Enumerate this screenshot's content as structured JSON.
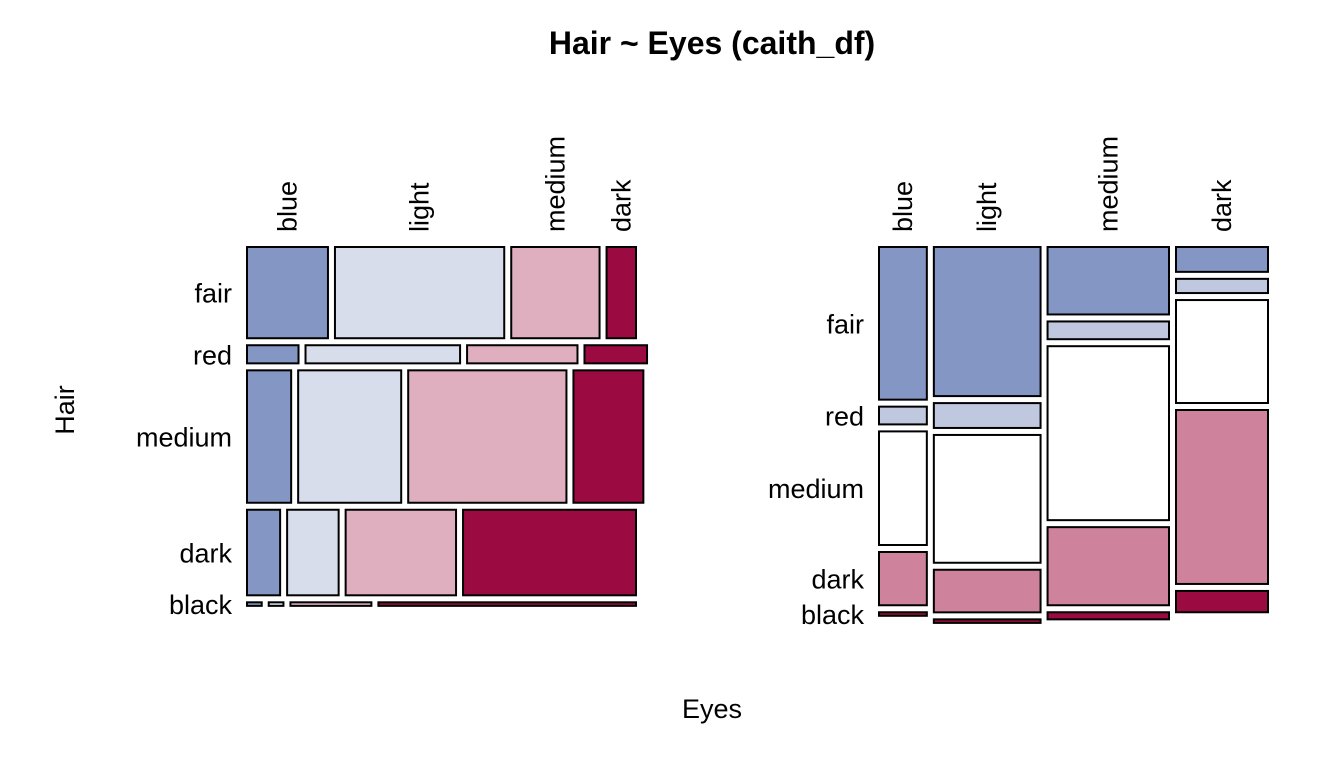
{
  "title": "Hair ~ Eyes (caith_df)",
  "xlabel": "Eyes",
  "ylabel": "Hair",
  "colors": {
    "eyes": {
      "blue": "#8497C4",
      "light": "#D8DDEB",
      "medium": "#DFAFBF",
      "dark": "#9B0A40"
    },
    "hair": {
      "fair": "#8497C4",
      "red": "#C0C8E0",
      "medium": "#FFFFFF",
      "dark": "#CE829C",
      "black": "#9B0A40"
    },
    "border": "#000000"
  },
  "chart_data": [
    {
      "type": "mosaic",
      "split_first": "Hair",
      "split_second": "Eyes",
      "row_categories": [
        "fair",
        "red",
        "medium",
        "dark",
        "black"
      ],
      "col_categories": [
        "blue",
        "light",
        "medium",
        "dark"
      ],
      "row_proportions": [
        0.257,
        0.051,
        0.373,
        0.241,
        0.01
      ],
      "cell_proportions": {
        "fair": [
          0.22,
          0.46,
          0.24,
          0.08
        ],
        "red": [
          0.14,
          0.42,
          0.3,
          0.17
        ],
        "medium": [
          0.12,
          0.28,
          0.43,
          0.19
        ],
        "dark": [
          0.09,
          0.14,
          0.3,
          0.47
        ],
        "black": [
          0.04,
          0.04,
          0.22,
          0.7
        ]
      },
      "fill_by": "Eyes"
    },
    {
      "type": "mosaic",
      "split_first": "Eyes",
      "split_second": "Hair",
      "col_categories": [
        "blue",
        "light",
        "medium",
        "dark"
      ],
      "row_categories": [
        "fair",
        "red",
        "medium",
        "dark",
        "black"
      ],
      "col_proportions": [
        0.13,
        0.29,
        0.33,
        0.25
      ],
      "cell_proportions": {
        "blue": [
          0.43,
          0.05,
          0.32,
          0.15,
          0.01
        ],
        "light": [
          0.42,
          0.07,
          0.36,
          0.12,
          0.01
        ],
        "medium": [
          0.19,
          0.05,
          0.49,
          0.22,
          0.02
        ],
        "dark": [
          0.07,
          0.04,
          0.29,
          0.49,
          0.06
        ]
      },
      "fill_by": "Hair"
    }
  ]
}
